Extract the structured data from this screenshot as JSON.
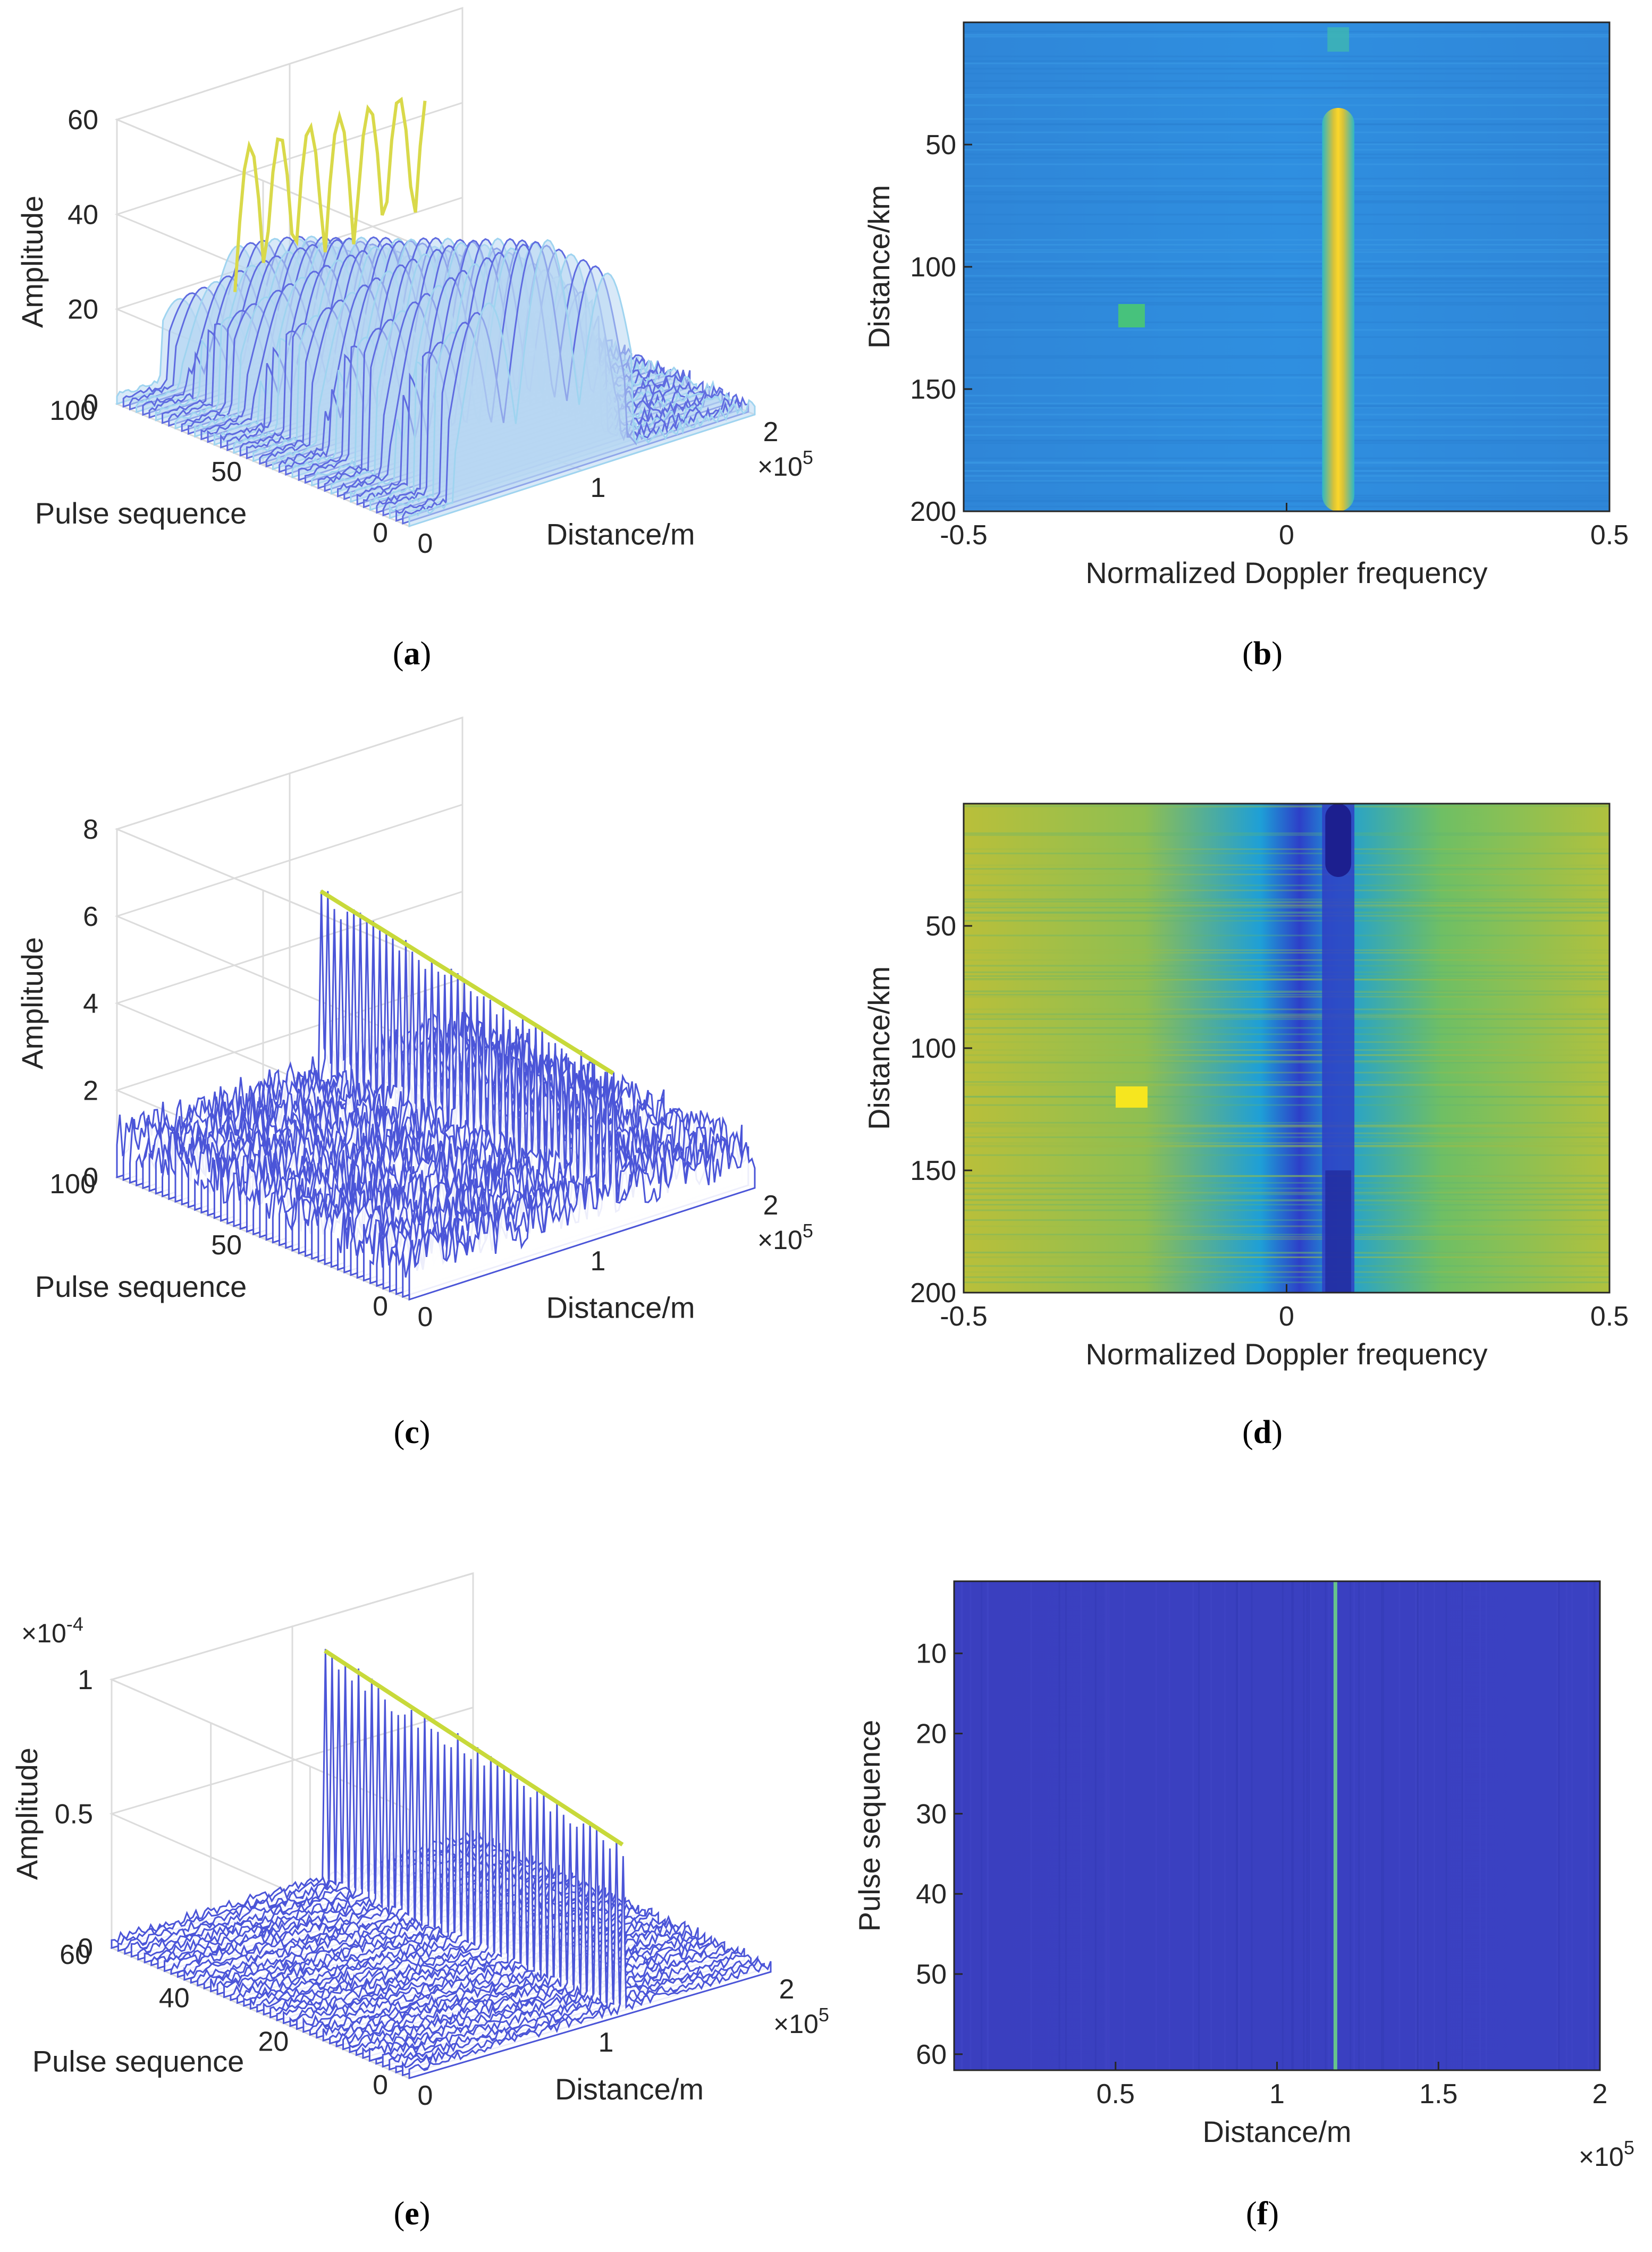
{
  "figure": {
    "panels": [
      "a",
      "b",
      "c",
      "d",
      "e",
      "f"
    ]
  },
  "chart_data": [
    {
      "id": "a",
      "type": "surface3d",
      "caption_letter": "a",
      "zlabel": "Amplitude",
      "ylabel": "Pulse sequence",
      "xlabel": "Distance/m",
      "zticks": [
        "0",
        "20",
        "40",
        "60"
      ],
      "yticks": [
        "0",
        "50",
        "100"
      ],
      "xticks": [
        "0",
        "1",
        "2"
      ],
      "xexp": "5",
      "zlim": [
        0,
        60
      ],
      "ylim": [
        0,
        100
      ],
      "xlim": [
        0,
        2
      ],
      "target_ridge": {
        "x_start": 0.2,
        "x_end": 1.25,
        "peak": 52
      },
      "noise_level": 3
    },
    {
      "id": "b",
      "type": "heatmap",
      "caption_letter": "b",
      "xlabel": "Normalized Doppler frequency",
      "ylabel": "Distance/km",
      "xticks": [
        "-0.5",
        "0",
        "0.5"
      ],
      "yticks": [
        "50",
        "100",
        "150",
        "200"
      ],
      "xlim": [
        -0.5,
        0.5
      ],
      "ylim": [
        0,
        200
      ],
      "stripe": {
        "center": 0.08,
        "width": 0.05,
        "from": 35,
        "to": 200,
        "style": "bright"
      },
      "target": {
        "x": -0.24,
        "y": 120
      }
    },
    {
      "id": "c",
      "type": "surface3d",
      "caption_letter": "c",
      "zlabel": "Amplitude",
      "ylabel": "Pulse sequence",
      "xlabel": "Distance/m",
      "zticks": [
        "0",
        "2",
        "4",
        "6",
        "8"
      ],
      "yticks": [
        "0",
        "50",
        "100"
      ],
      "xticks": [
        "0",
        "1",
        "2"
      ],
      "xexp": "5",
      "zlim": [
        0,
        8
      ],
      "ylim": [
        0,
        100
      ],
      "xlim": [
        0,
        2
      ],
      "target_ridge": {
        "x_start": 1.18,
        "x_end": 1.18,
        "peak": 5.5
      },
      "noise_level": 1.2
    },
    {
      "id": "d",
      "type": "heatmap",
      "caption_letter": "d",
      "xlabel": "Normalized Doppler frequency",
      "ylabel": "Distance/km",
      "xticks": [
        "-0.5",
        "0",
        "0.5"
      ],
      "yticks": [
        "50",
        "100",
        "150",
        "200"
      ],
      "xlim": [
        -0.5,
        0.5
      ],
      "ylim": [
        0,
        200
      ],
      "stripe": {
        "center": 0.08,
        "width": 0.05,
        "from": 0,
        "to": 200,
        "style": "dark"
      },
      "target": {
        "x": -0.24,
        "y": 120
      }
    },
    {
      "id": "e",
      "type": "surface3d",
      "caption_letter": "e",
      "zlabel": "Amplitude",
      "zexp": "-4",
      "ylabel": "Pulse sequence",
      "xlabel": "Distance/m",
      "zticks": [
        "0",
        "0.5",
        "1"
      ],
      "yticks": [
        "0",
        "20",
        "40",
        "60"
      ],
      "xticks": [
        "0",
        "1",
        "2"
      ],
      "xexp": "5",
      "zlim": [
        0,
        1
      ],
      "ylim": [
        0,
        64
      ],
      "xlim": [
        0,
        2
      ],
      "target_ridge": {
        "x_start": 1.18,
        "x_end": 1.18,
        "peak": 0.95
      },
      "noise_level": 0.04
    },
    {
      "id": "f",
      "type": "heatmap",
      "caption_letter": "f",
      "xlabel": "Distance/m",
      "ylabel": "Pulse sequence",
      "xticks": [
        "0.5",
        "1",
        "1.5",
        "2"
      ],
      "xexp": "5",
      "yticks": [
        "10",
        "20",
        "30",
        "40",
        "50",
        "60"
      ],
      "xlim": [
        0,
        2
      ],
      "ylim": [
        1,
        62
      ],
      "target_line": {
        "x": 1.18
      }
    }
  ]
}
